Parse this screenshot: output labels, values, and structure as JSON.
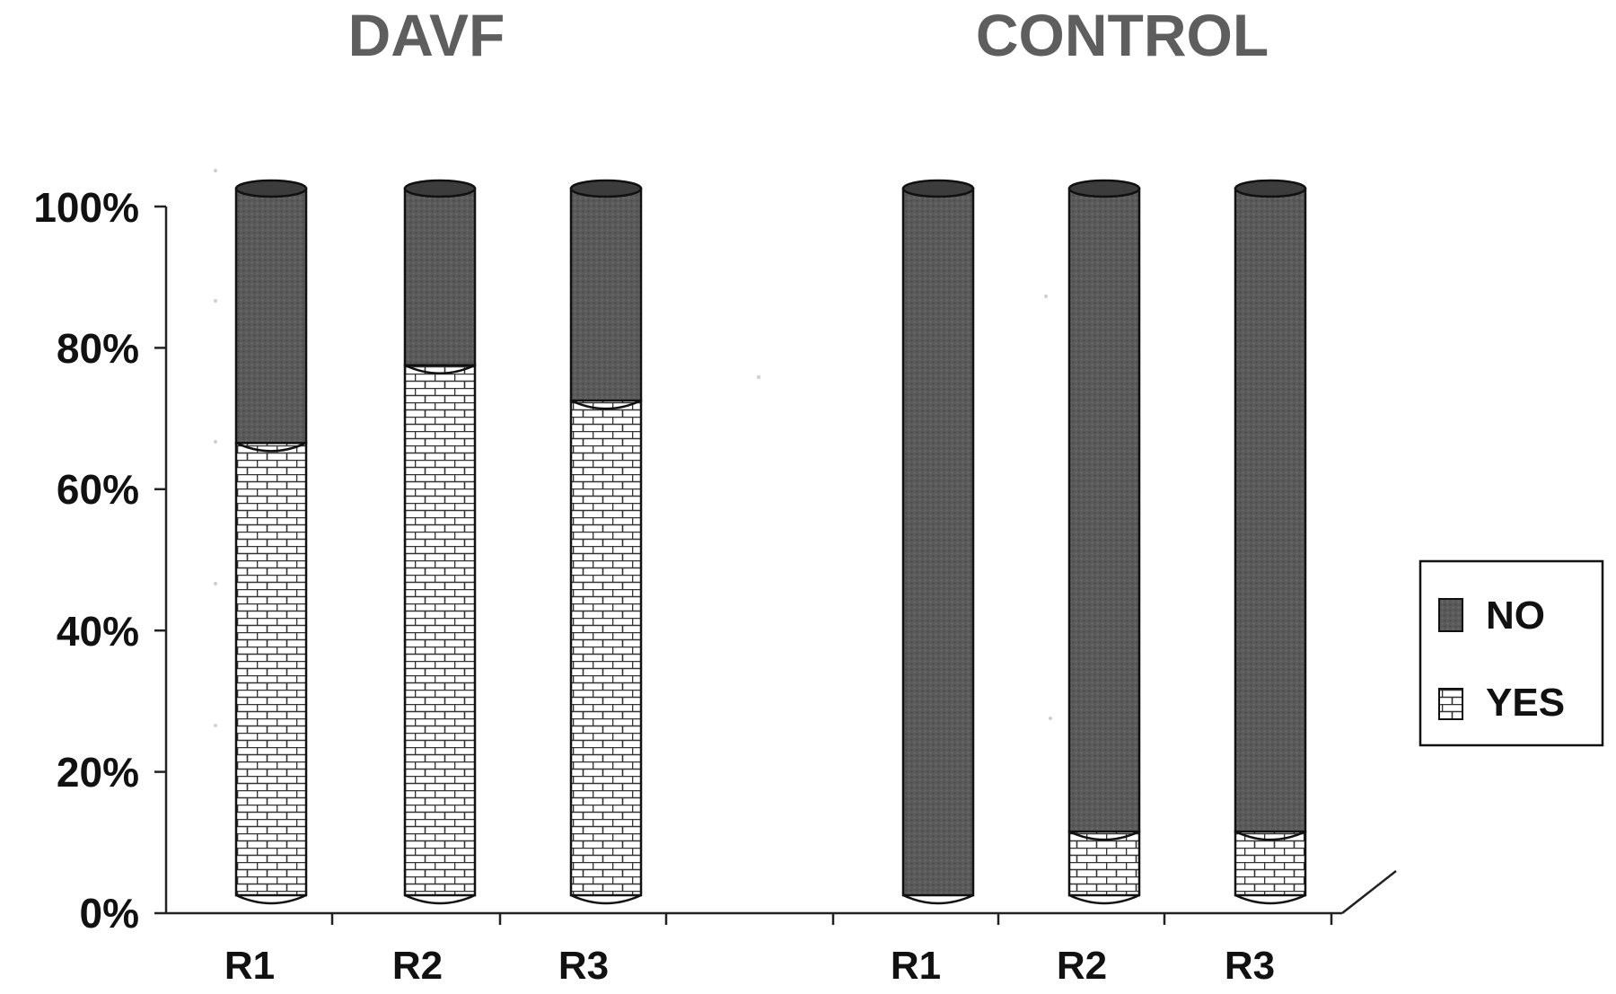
{
  "chart_data": {
    "type": "bar",
    "stacked": true,
    "percent_stacked": true,
    "groups": [
      "DAVF",
      "CONTROL"
    ],
    "categories": [
      "R1",
      "R2",
      "R3",
      "R1",
      "R2",
      "R3"
    ],
    "series": [
      {
        "name": "YES",
        "values": [
          64,
          75,
          70,
          0,
          9,
          9
        ]
      },
      {
        "name": "NO",
        "values": [
          36,
          25,
          30,
          100,
          91,
          91
        ]
      }
    ],
    "ylim": [
      0,
      100
    ],
    "yticks": [
      "0%",
      "20%",
      "40%",
      "60%",
      "80%",
      "100%"
    ],
    "legend": "right",
    "legend_order": [
      "NO",
      "YES"
    ],
    "colors": {
      "NO": "#555555",
      "YES": "#ffffff",
      "axis": "#222222",
      "title": "#5e5e5e"
    }
  }
}
